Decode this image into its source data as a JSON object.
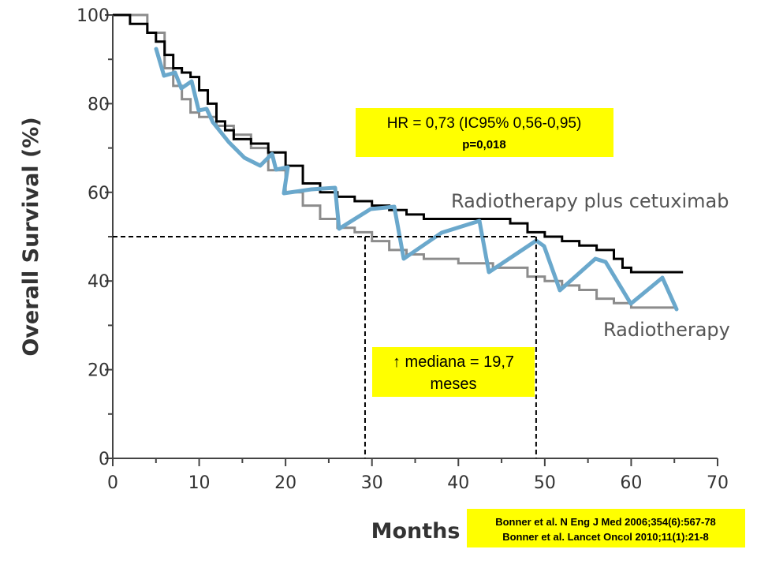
{
  "chart_data": {
    "type": "line",
    "interpolation": "step-after",
    "xlabel": "Months",
    "ylabel": "Overall Survival (%)",
    "xlim": [
      0,
      70
    ],
    "xticks": [
      0,
      10,
      20,
      30,
      40,
      50,
      60,
      70
    ],
    "xminorticks": [
      5,
      15,
      25,
      35,
      45,
      55,
      65
    ],
    "ylim": [
      0,
      100
    ],
    "yticks": [
      0,
      20,
      40,
      60,
      80,
      100
    ],
    "yminorticks": [
      10,
      30,
      50,
      70,
      90
    ],
    "series": [
      {
        "name": "Radiotherapy plus cetuximab",
        "color": "#000000",
        "x": [
          0,
          2,
          4,
          5,
          6,
          7,
          8,
          9,
          10,
          11,
          12,
          13,
          14,
          16,
          18,
          20,
          22,
          24,
          26,
          28,
          30,
          32,
          34,
          36,
          40,
          44,
          46,
          48,
          50,
          52,
          54,
          56,
          58,
          59,
          60,
          62,
          64,
          66
        ],
        "values": [
          100,
          98,
          96,
          94,
          91,
          88,
          87,
          86,
          83,
          80,
          76,
          74,
          72,
          71,
          69,
          66,
          62,
          60,
          59,
          58,
          57,
          56,
          55,
          54,
          54,
          54,
          53,
          51,
          50,
          49,
          48,
          47,
          45,
          43,
          42,
          42,
          42,
          42
        ]
      },
      {
        "name": "Radiotherapy",
        "color": "#8c8c8c",
        "x": [
          0,
          4,
          6,
          7,
          8,
          9,
          10,
          11,
          12,
          14,
          16,
          18,
          20,
          22,
          24,
          26,
          28,
          30,
          32,
          34,
          36,
          40,
          44,
          48,
          50,
          52,
          54,
          56,
          58,
          60,
          62,
          65
        ],
        "values": [
          100,
          96,
          88,
          84,
          81,
          78,
          77,
          77,
          75,
          73,
          70,
          65,
          60,
          57,
          54,
          52,
          51,
          49,
          47,
          46,
          45,
          44,
          43,
          41,
          40,
          39,
          38,
          36,
          35,
          34,
          34,
          34
        ]
      }
    ],
    "median_line": {
      "y": 50,
      "x": [
        29.2,
        49.0
      ]
    },
    "annotations": {
      "hr": "HR = 0,73 (IC95% 0,56-0,95)",
      "p": "p=0,018",
      "median": [
        "↑ mediana = 19,7",
        "meses"
      ],
      "reference": [
        "Bonner et al. N Eng J Med 2006;354(6):567-78",
        "Bonner et al. Lancet Oncol 2010;11(1):21-8"
      ]
    }
  }
}
